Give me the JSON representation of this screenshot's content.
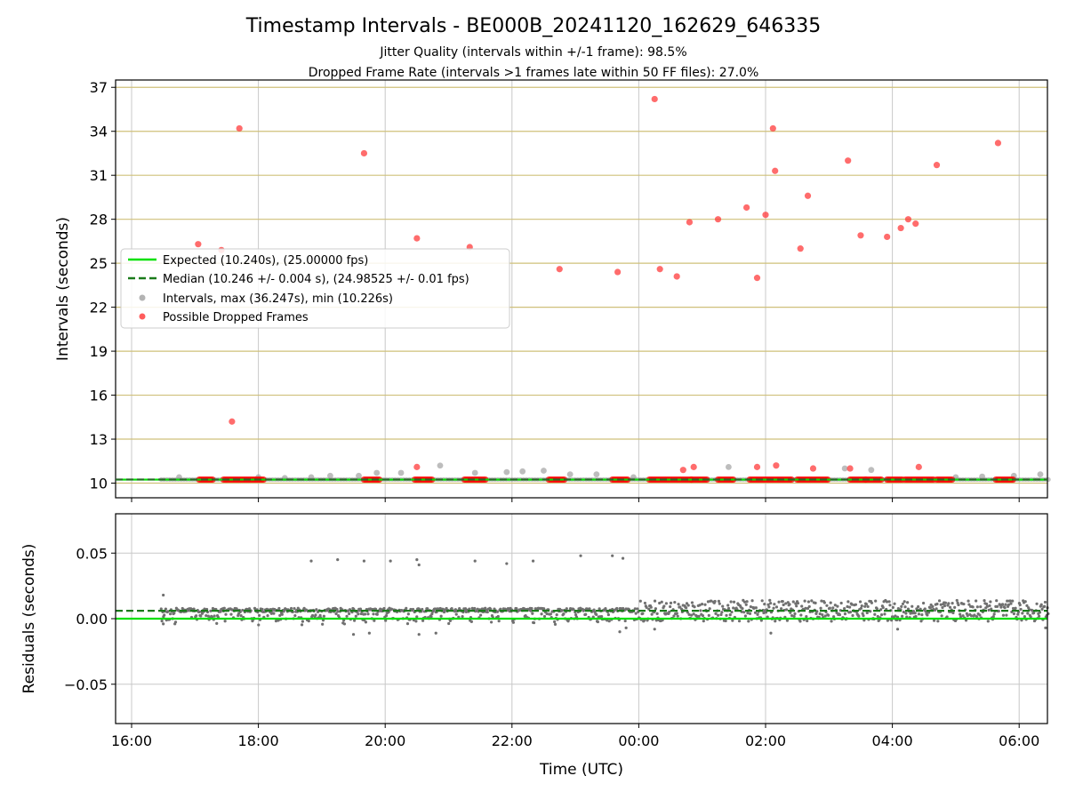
{
  "chart_data": {
    "type": "scatter",
    "title": "Timestamp Intervals - BE000B_20241120_162629_646335",
    "subtitle_lines": [
      "Jitter Quality (intervals within +/-1 frame): 98.5%",
      "Dropped Frame Rate (intervals >1 frames late within 50 FF files): 27.0%"
    ],
    "xlabel": "Time (UTC)",
    "x_ticks": [
      "16:00",
      "18:00",
      "20:00",
      "22:00",
      "00:00",
      "02:00",
      "04:00",
      "06:00"
    ],
    "top_panel": {
      "ylabel": "Intervals (seconds)",
      "ylim": [
        9.0,
        37.5
      ],
      "y_ticks": [
        10,
        13,
        16,
        19,
        22,
        25,
        28,
        31,
        34,
        37
      ],
      "grid": true,
      "legend_placement": "center-left",
      "legend": [
        "Expected (10.240s), (25.00000 fps)",
        "Median (10.246 +/- 0.004 s), (24.98525 +/- 0.01 fps)",
        "Intervals, max (36.247s), min (10.226s)",
        "Possible Dropped Frames"
      ],
      "expected": 10.24,
      "median": 10.246,
      "dropped_frames": [
        [
          "17:03",
          26.3
        ],
        [
          "17:25",
          25.9
        ],
        [
          "17:35",
          14.2
        ],
        [
          "17:42",
          34.2
        ],
        [
          "19:40",
          32.5
        ],
        [
          "20:30",
          26.7
        ],
        [
          "21:20",
          26.1
        ],
        [
          "22:45",
          24.6
        ],
        [
          "23:40",
          24.4
        ],
        [
          "00:15",
          36.2
        ],
        [
          "00:20",
          24.6
        ],
        [
          "00:36",
          24.1
        ],
        [
          "00:48",
          27.8
        ],
        [
          "01:15",
          28.0
        ],
        [
          "01:42",
          28.8
        ],
        [
          "01:52",
          24.0
        ],
        [
          "02:00",
          28.3
        ],
        [
          "02:07",
          34.2
        ],
        [
          "02:09",
          31.3
        ],
        [
          "02:33",
          26.0
        ],
        [
          "02:40",
          29.6
        ],
        [
          "03:18",
          32.0
        ],
        [
          "03:30",
          26.9
        ],
        [
          "03:55",
          26.8
        ],
        [
          "04:08",
          27.4
        ],
        [
          "04:15",
          28.0
        ],
        [
          "04:22",
          27.7
        ],
        [
          "04:42",
          31.7
        ],
        [
          "05:40",
          33.2
        ],
        [
          "20:30",
          11.1
        ],
        [
          "00:42",
          10.9
        ],
        [
          "00:52",
          11.1
        ],
        [
          "01:52",
          11.1
        ],
        [
          "02:10",
          11.2
        ],
        [
          "02:45",
          11.0
        ],
        [
          "03:20",
          11.0
        ],
        [
          "04:25",
          11.1
        ]
      ],
      "dropped_clusters": [
        [
          "17:04",
          "17:18"
        ],
        [
          "17:27",
          "18:05"
        ],
        [
          "19:40",
          "19:55"
        ],
        [
          "20:28",
          "20:45"
        ],
        [
          "21:15",
          "21:35"
        ],
        [
          "22:35",
          "22:50"
        ],
        [
          "23:35",
          "23:50"
        ],
        [
          "00:10",
          "00:50"
        ],
        [
          "00:50",
          "01:05"
        ],
        [
          "01:15",
          "01:30"
        ],
        [
          "01:45",
          "02:25"
        ],
        [
          "02:30",
          "03:00"
        ],
        [
          "03:20",
          "03:35"
        ],
        [
          "03:35",
          "03:50"
        ],
        [
          "03:55",
          "04:10"
        ],
        [
          "04:12",
          "04:40"
        ],
        [
          "04:42",
          "04:58"
        ],
        [
          "05:38",
          "05:55"
        ]
      ],
      "intervals_small": [
        [
          "16:45",
          10.4
        ],
        [
          "18:00",
          10.4
        ],
        [
          "18:25",
          10.35
        ],
        [
          "18:50",
          10.4
        ],
        [
          "19:08",
          10.5
        ],
        [
          "19:35",
          10.5
        ],
        [
          "19:52",
          10.7
        ],
        [
          "20:15",
          10.7
        ],
        [
          "20:52",
          11.2
        ],
        [
          "21:25",
          10.7
        ],
        [
          "21:55",
          10.75
        ],
        [
          "22:10",
          10.8
        ],
        [
          "22:30",
          10.85
        ],
        [
          "22:55",
          10.6
        ],
        [
          "23:20",
          10.6
        ],
        [
          "23:55",
          10.4
        ],
        [
          "01:25",
          11.1
        ],
        [
          "03:15",
          11.0
        ],
        [
          "03:40",
          10.9
        ],
        [
          "05:00",
          10.4
        ],
        [
          "05:25",
          10.45
        ],
        [
          "05:55",
          10.5
        ],
        [
          "06:20",
          10.6
        ]
      ]
    },
    "bottom_panel": {
      "ylabel": "Residuals (seconds)",
      "ylim": [
        -0.08,
        0.08
      ],
      "y_ticks": [
        "0.05",
        "0.00",
        "−0.05"
      ],
      "grid": true,
      "expected": 0.0,
      "median": 0.006,
      "outliers": [
        [
          "16:30",
          0.018
        ],
        [
          "18:50",
          0.044
        ],
        [
          "19:15",
          0.045
        ],
        [
          "19:40",
          0.044
        ],
        [
          "20:05",
          0.044
        ],
        [
          "20:30",
          0.045
        ],
        [
          "20:32",
          0.041
        ],
        [
          "21:25",
          0.044
        ],
        [
          "21:55",
          0.042
        ],
        [
          "22:20",
          0.044
        ],
        [
          "23:05",
          0.048
        ],
        [
          "23:35",
          0.048
        ],
        [
          "23:45",
          0.046
        ],
        [
          "16:30",
          -0.004
        ],
        [
          "19:30",
          -0.012
        ],
        [
          "19:45",
          -0.011
        ],
        [
          "20:32",
          -0.012
        ],
        [
          "20:48",
          -0.011
        ],
        [
          "23:42",
          -0.01
        ],
        [
          "23:48",
          -0.007
        ],
        [
          "00:15",
          -0.008
        ],
        [
          "02:05",
          -0.011
        ],
        [
          "04:05",
          -0.008
        ],
        [
          "06:25",
          -0.007
        ]
      ]
    }
  },
  "colors": {
    "expected": "#00e000",
    "median": "#1a7a1a",
    "intervals": "#999999",
    "dropped": "#ff3333",
    "dropped_cluster": "#ff0000",
    "gold_grid": "#cfc07a",
    "grid": "#c8c8c8",
    "residual": "#707070"
  }
}
